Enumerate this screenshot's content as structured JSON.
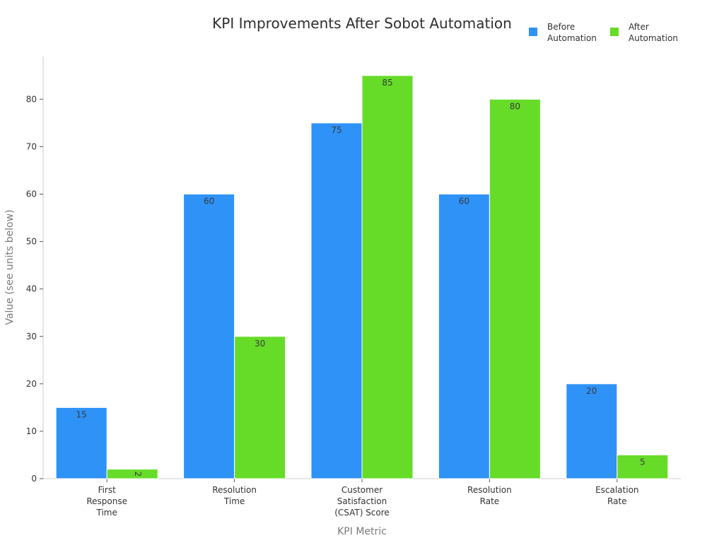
{
  "chart_data": {
    "type": "bar",
    "title": "KPI Improvements After Sobot Automation",
    "xlabel": "KPI Metric",
    "ylabel": "Value (see units below)",
    "ylim": [
      0,
      89
    ],
    "yticks": [
      0,
      10,
      20,
      30,
      40,
      50,
      60,
      70,
      80
    ],
    "grid": false,
    "legend_position": "top-right",
    "categories": [
      [
        "First",
        "Response",
        "Time"
      ],
      [
        "Resolution",
        "Time"
      ],
      [
        "Customer",
        "Satisfaction",
        "(CSAT) Score"
      ],
      [
        "Resolution",
        "Rate"
      ],
      [
        "Escalation",
        "Rate"
      ]
    ],
    "series": [
      {
        "name": [
          "Before",
          "Automation"
        ],
        "color": "#2f92f7",
        "values": [
          15,
          60,
          75,
          60,
          20
        ]
      },
      {
        "name": [
          "After",
          "Automation"
        ],
        "color": "#66dc28",
        "values": [
          2,
          30,
          85,
          80,
          5
        ]
      }
    ]
  }
}
